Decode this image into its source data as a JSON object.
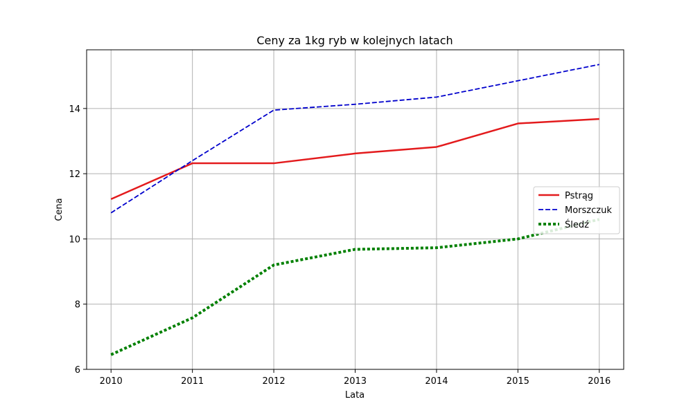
{
  "chart_data": {
    "type": "line",
    "title": "Ceny za 1kg ryb w kolejnych latach",
    "xlabel": "Lata",
    "ylabel": "Cena",
    "x": [
      2010,
      2011,
      2012,
      2013,
      2014,
      2015,
      2016
    ],
    "x_ticks": [
      "2010",
      "2011",
      "2012",
      "2013",
      "2014",
      "2015",
      "2016"
    ],
    "y_ticks": [
      "6",
      "8",
      "10",
      "12",
      "14"
    ],
    "xlim": [
      2009.7,
      2016.3
    ],
    "ylim": [
      6.0,
      15.8
    ],
    "grid": true,
    "legend_position": "center-right",
    "series": [
      {
        "name": "Pstrąg",
        "values": [
          11.22,
          12.32,
          12.32,
          12.62,
          12.82,
          13.54,
          13.68
        ],
        "color": "#e31a1c",
        "style": "solid"
      },
      {
        "name": "Morszczuk",
        "values": [
          10.8,
          12.4,
          13.95,
          14.13,
          14.35,
          14.85,
          15.35
        ],
        "color": "#0000cc",
        "style": "dashed"
      },
      {
        "name": "Śledź",
        "values": [
          6.45,
          7.58,
          9.2,
          9.68,
          9.73,
          10.0,
          10.6
        ],
        "color": "#008000",
        "style": "dotted"
      }
    ]
  }
}
